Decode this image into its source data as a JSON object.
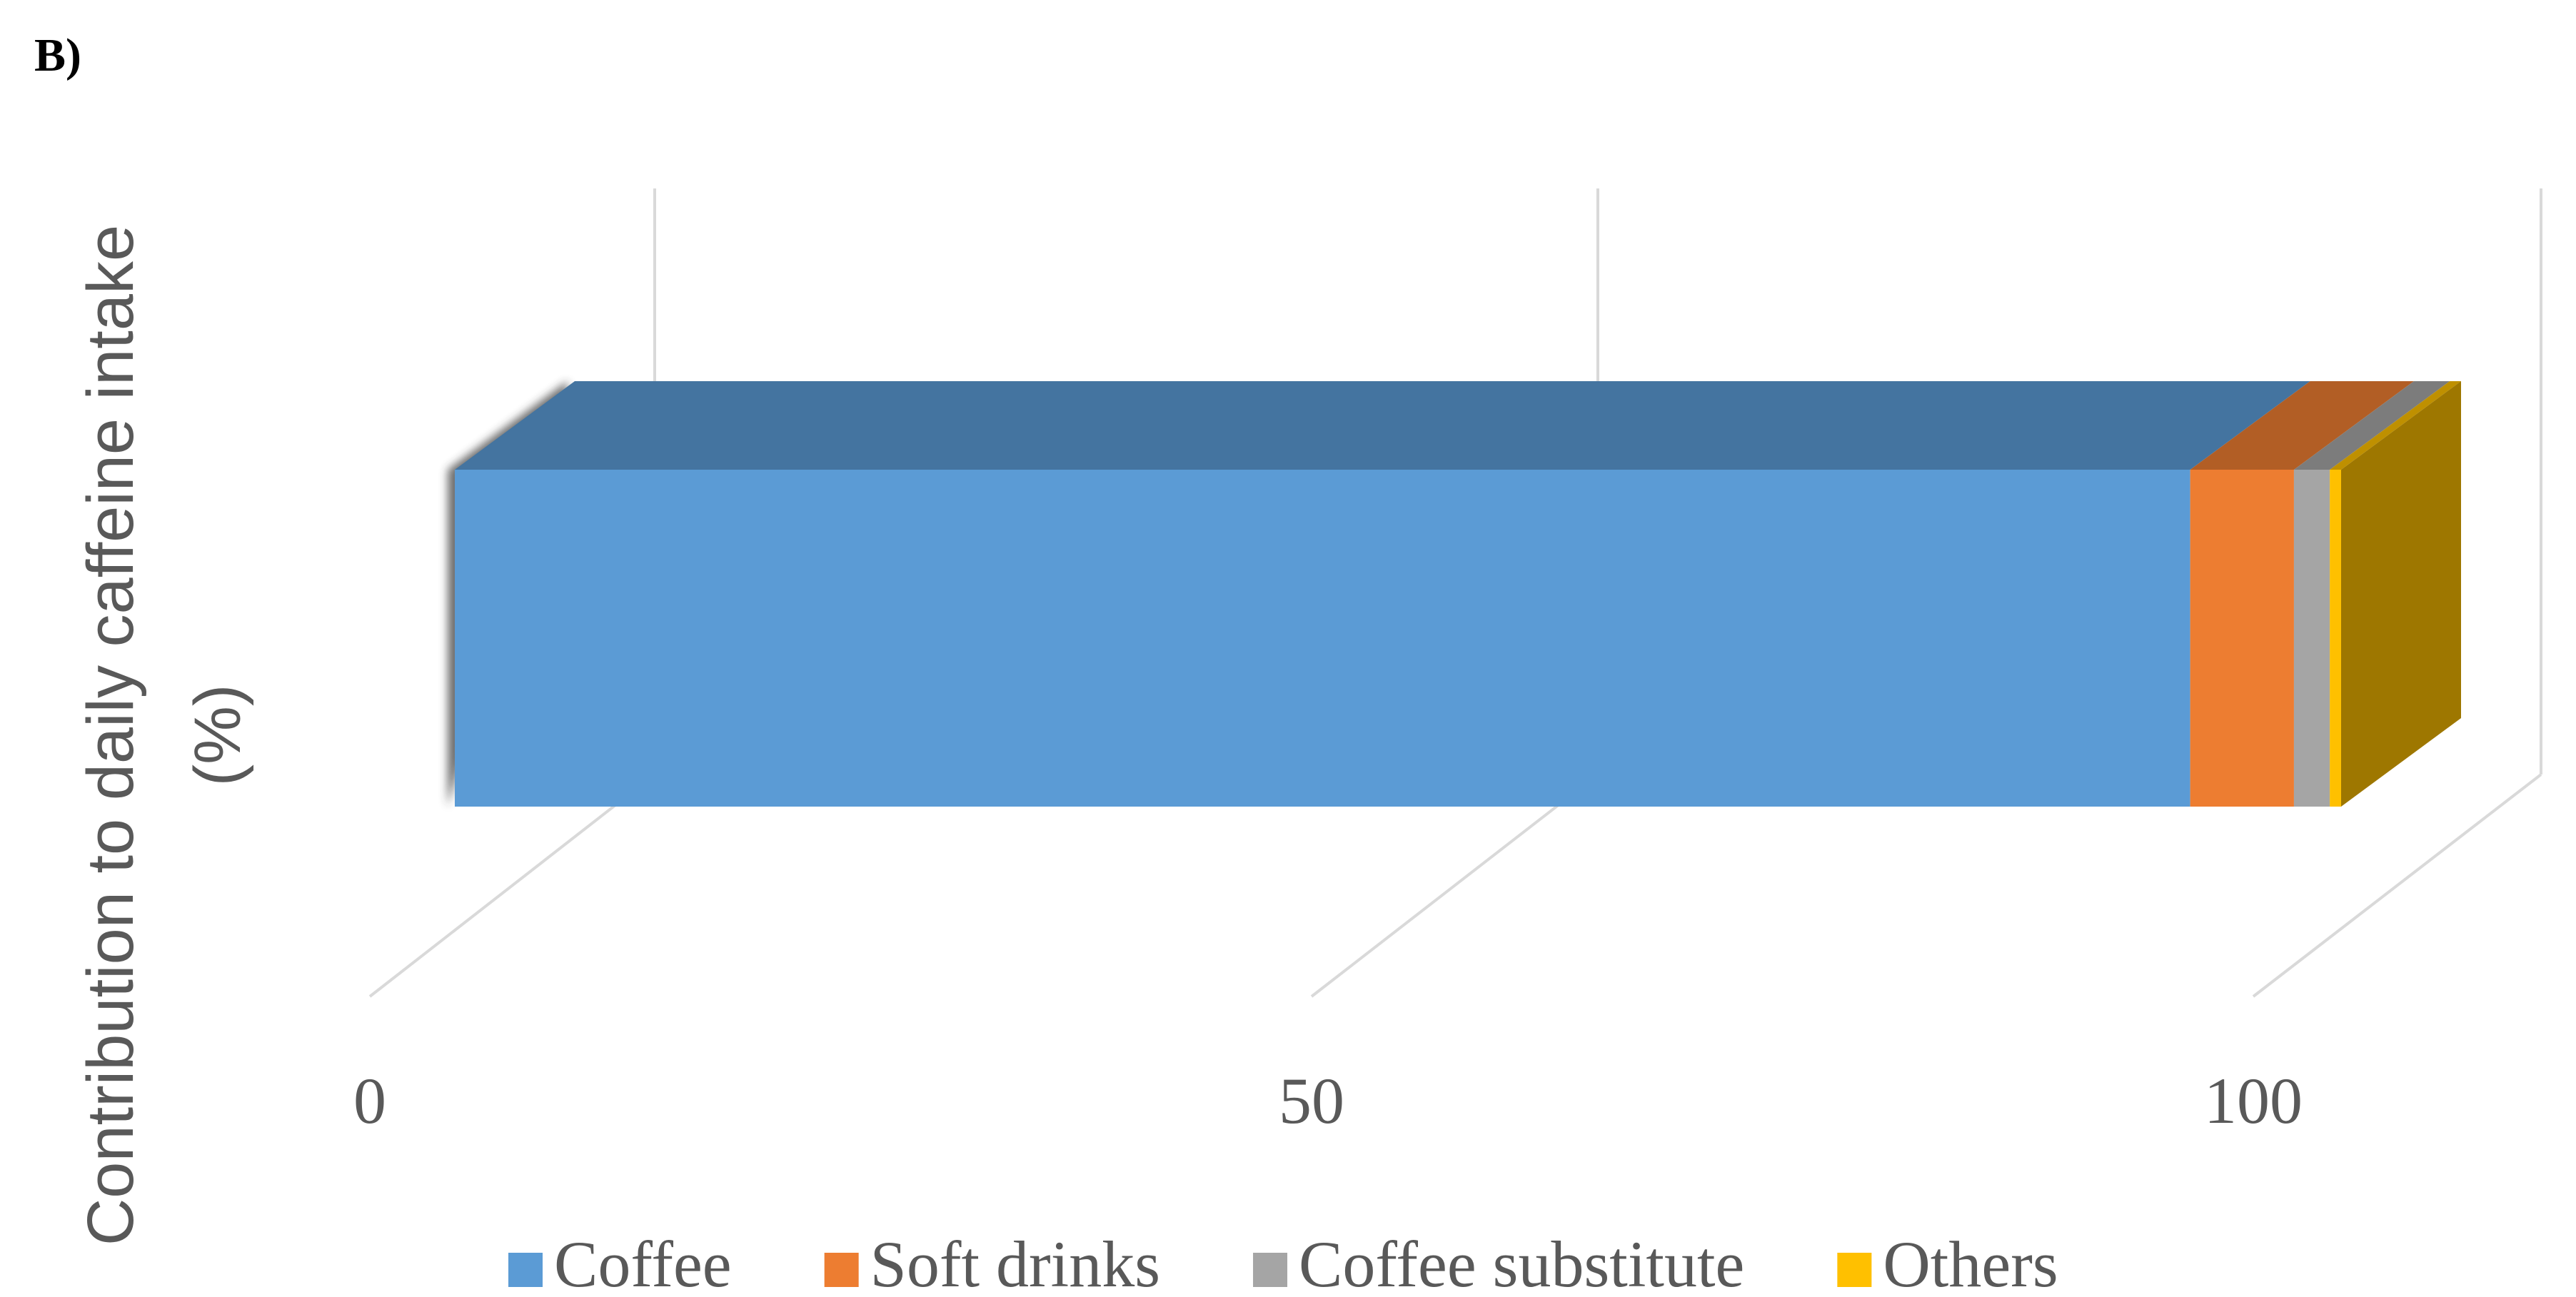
{
  "chart_data": {
    "type": "bar3d",
    "panel_label": "B)",
    "y_label": "Contribution to daily caffeine intake (%)",
    "categories": [
      null
    ],
    "series": [
      {
        "name": "Coffee",
        "color": "#5b9bd5",
        "values": [
          92
        ]
      },
      {
        "name": "Soft drinks",
        "color": "#ed7d31",
        "values": [
          5.5
        ]
      },
      {
        "name": "Coffee substitute",
        "color": "#a5a5a5",
        "values": [
          1.9
        ]
      },
      {
        "name": "Others",
        "color": "#ffc000",
        "values": [
          0.6
        ]
      }
    ],
    "xlim": [
      0,
      100
    ],
    "xticks": [
      0,
      50,
      100
    ],
    "grid": true,
    "legend": "bottom"
  }
}
